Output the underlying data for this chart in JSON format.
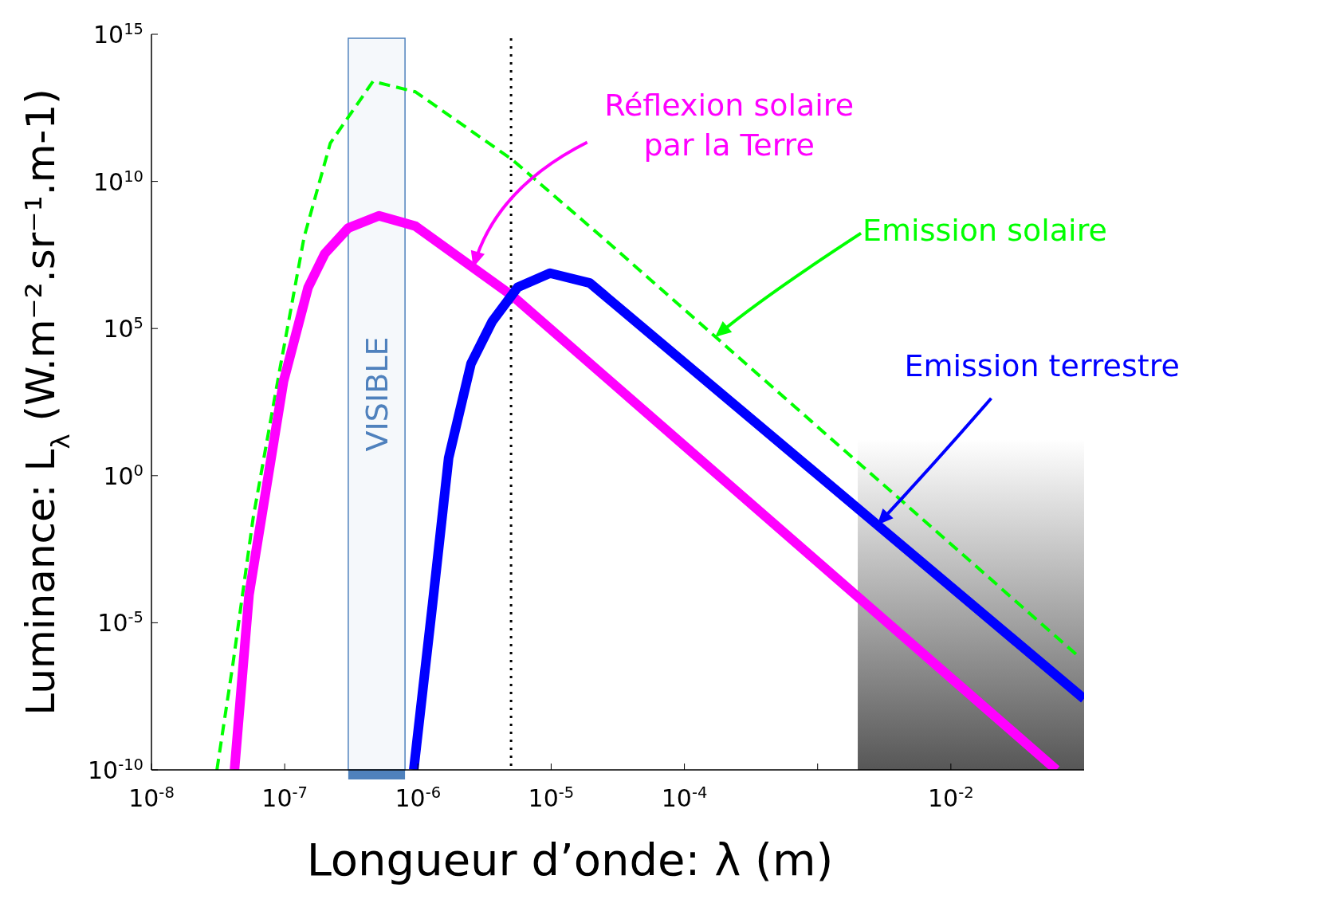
{
  "chart_data": {
    "type": "line",
    "xlabel": "Longueur d’onde: λ (m)",
    "ylabel": "Luminance: L$_{λ}$ (W.m⁻².sr⁻¹.m-1)",
    "log": "xy",
    "grid": false,
    "xlim": [
      1e-08,
      0.1
    ],
    "ylim": [
      1e-10,
      1000000000000000.0
    ],
    "xticks": [
      {
        "value": 1e-08,
        "label": "10$^{-8}$"
      },
      {
        "value": 1e-07,
        "label": "10$^{-7}$"
      },
      {
        "value": 1e-06,
        "label": "10$^{-6}$"
      },
      {
        "value": 1e-05,
        "label": "10$^{-5}$"
      },
      {
        "value": 0.0001,
        "label": "10$^{-4}$"
      },
      {
        "value": 0.001,
        "label": null
      },
      {
        "value": 0.01,
        "label": "10$^{-2}$"
      }
    ],
    "yticks": [
      {
        "value": 1e-10,
        "label": "10$^{-10}$"
      },
      {
        "value": 1e-05,
        "label": "10$^{-5}$"
      },
      {
        "value": 1,
        "label": "10$^{0}$"
      },
      {
        "value": 100000.0,
        "label": "10$^{5}$"
      },
      {
        "value": 10000000000.0,
        "label": "10$^{10}$"
      },
      {
        "value": 1000000000000000.0,
        "label": "10$^{15}$"
      }
    ],
    "series": [
      {
        "color": "#00ff00",
        "line_style": "dashed",
        "x": [
          3.1e-08,
          4.1e-08,
          5.8e-08,
          9.1e-08,
          1.4e-07,
          2.2e-07,
          4.6e-07,
          9.6e-07,
          5.1e-06,
          2.4e-05,
          0.087
        ],
        "values": [
          1e-10,
          4.4e-07,
          0.037,
          3200,
          130000000.0,
          200000000000.0,
          25000000000000.0,
          11000000000000.0,
          55000000000.0,
          130000000.0,
          8.5e-07
        ]
      },
      {
        "color": "#ff00ff",
        "line_style": "solid",
        "x": [
          4.2e-08,
          5.4e-08,
          9.8e-08,
          1.5e-07,
          2e-07,
          3e-07,
          5.1e-07,
          9.6e-07,
          5.1e-06,
          0.062
        ],
        "values": [
          1e-10,
          9e-05,
          1600,
          2500000.0,
          35000000.0,
          260000000.0,
          680000000.0,
          300000000.0,
          1300000.0,
          1e-10
        ]
      },
      {
        "color": "#0000ff",
        "line_style": "solid",
        "x": [
          9.3e-07,
          1.29e-06,
          1.7e-06,
          2.5e-06,
          3.6e-06,
          5.6e-06,
          9.8e-06,
          1.95e-05,
          0.1
        ],
        "values": [
          1e-10,
          4.7e-05,
          4,
          6300,
          170000.0,
          2500000.0,
          7600000.0,
          3500000.0,
          2.6e-08
        ]
      }
    ],
    "ref_lines": [
      {
        "axis": "x",
        "value": 5e-06,
        "color": "#000000",
        "line_style": "dotted"
      }
    ],
    "bands": [
      {
        "axis": "x",
        "from": 3e-07,
        "to": 8e-07,
        "label": "VISIBLE",
        "color": "#4f81bd"
      },
      {
        "axis": "x",
        "from": 0.002,
        "to": 0.1,
        "color": "#444444"
      }
    ],
    "annotations": [
      {
        "text": "Emission solaire",
        "x": 0.00017,
        "y": 52000.0
      },
      {
        "text": "Réflexion solaire\npar la Terre",
        "x": 2.6e-06,
        "y": 12000000.0
      },
      {
        "text": "Emission terrestre",
        "x": 0.0028,
        "y": 0.021
      }
    ]
  }
}
